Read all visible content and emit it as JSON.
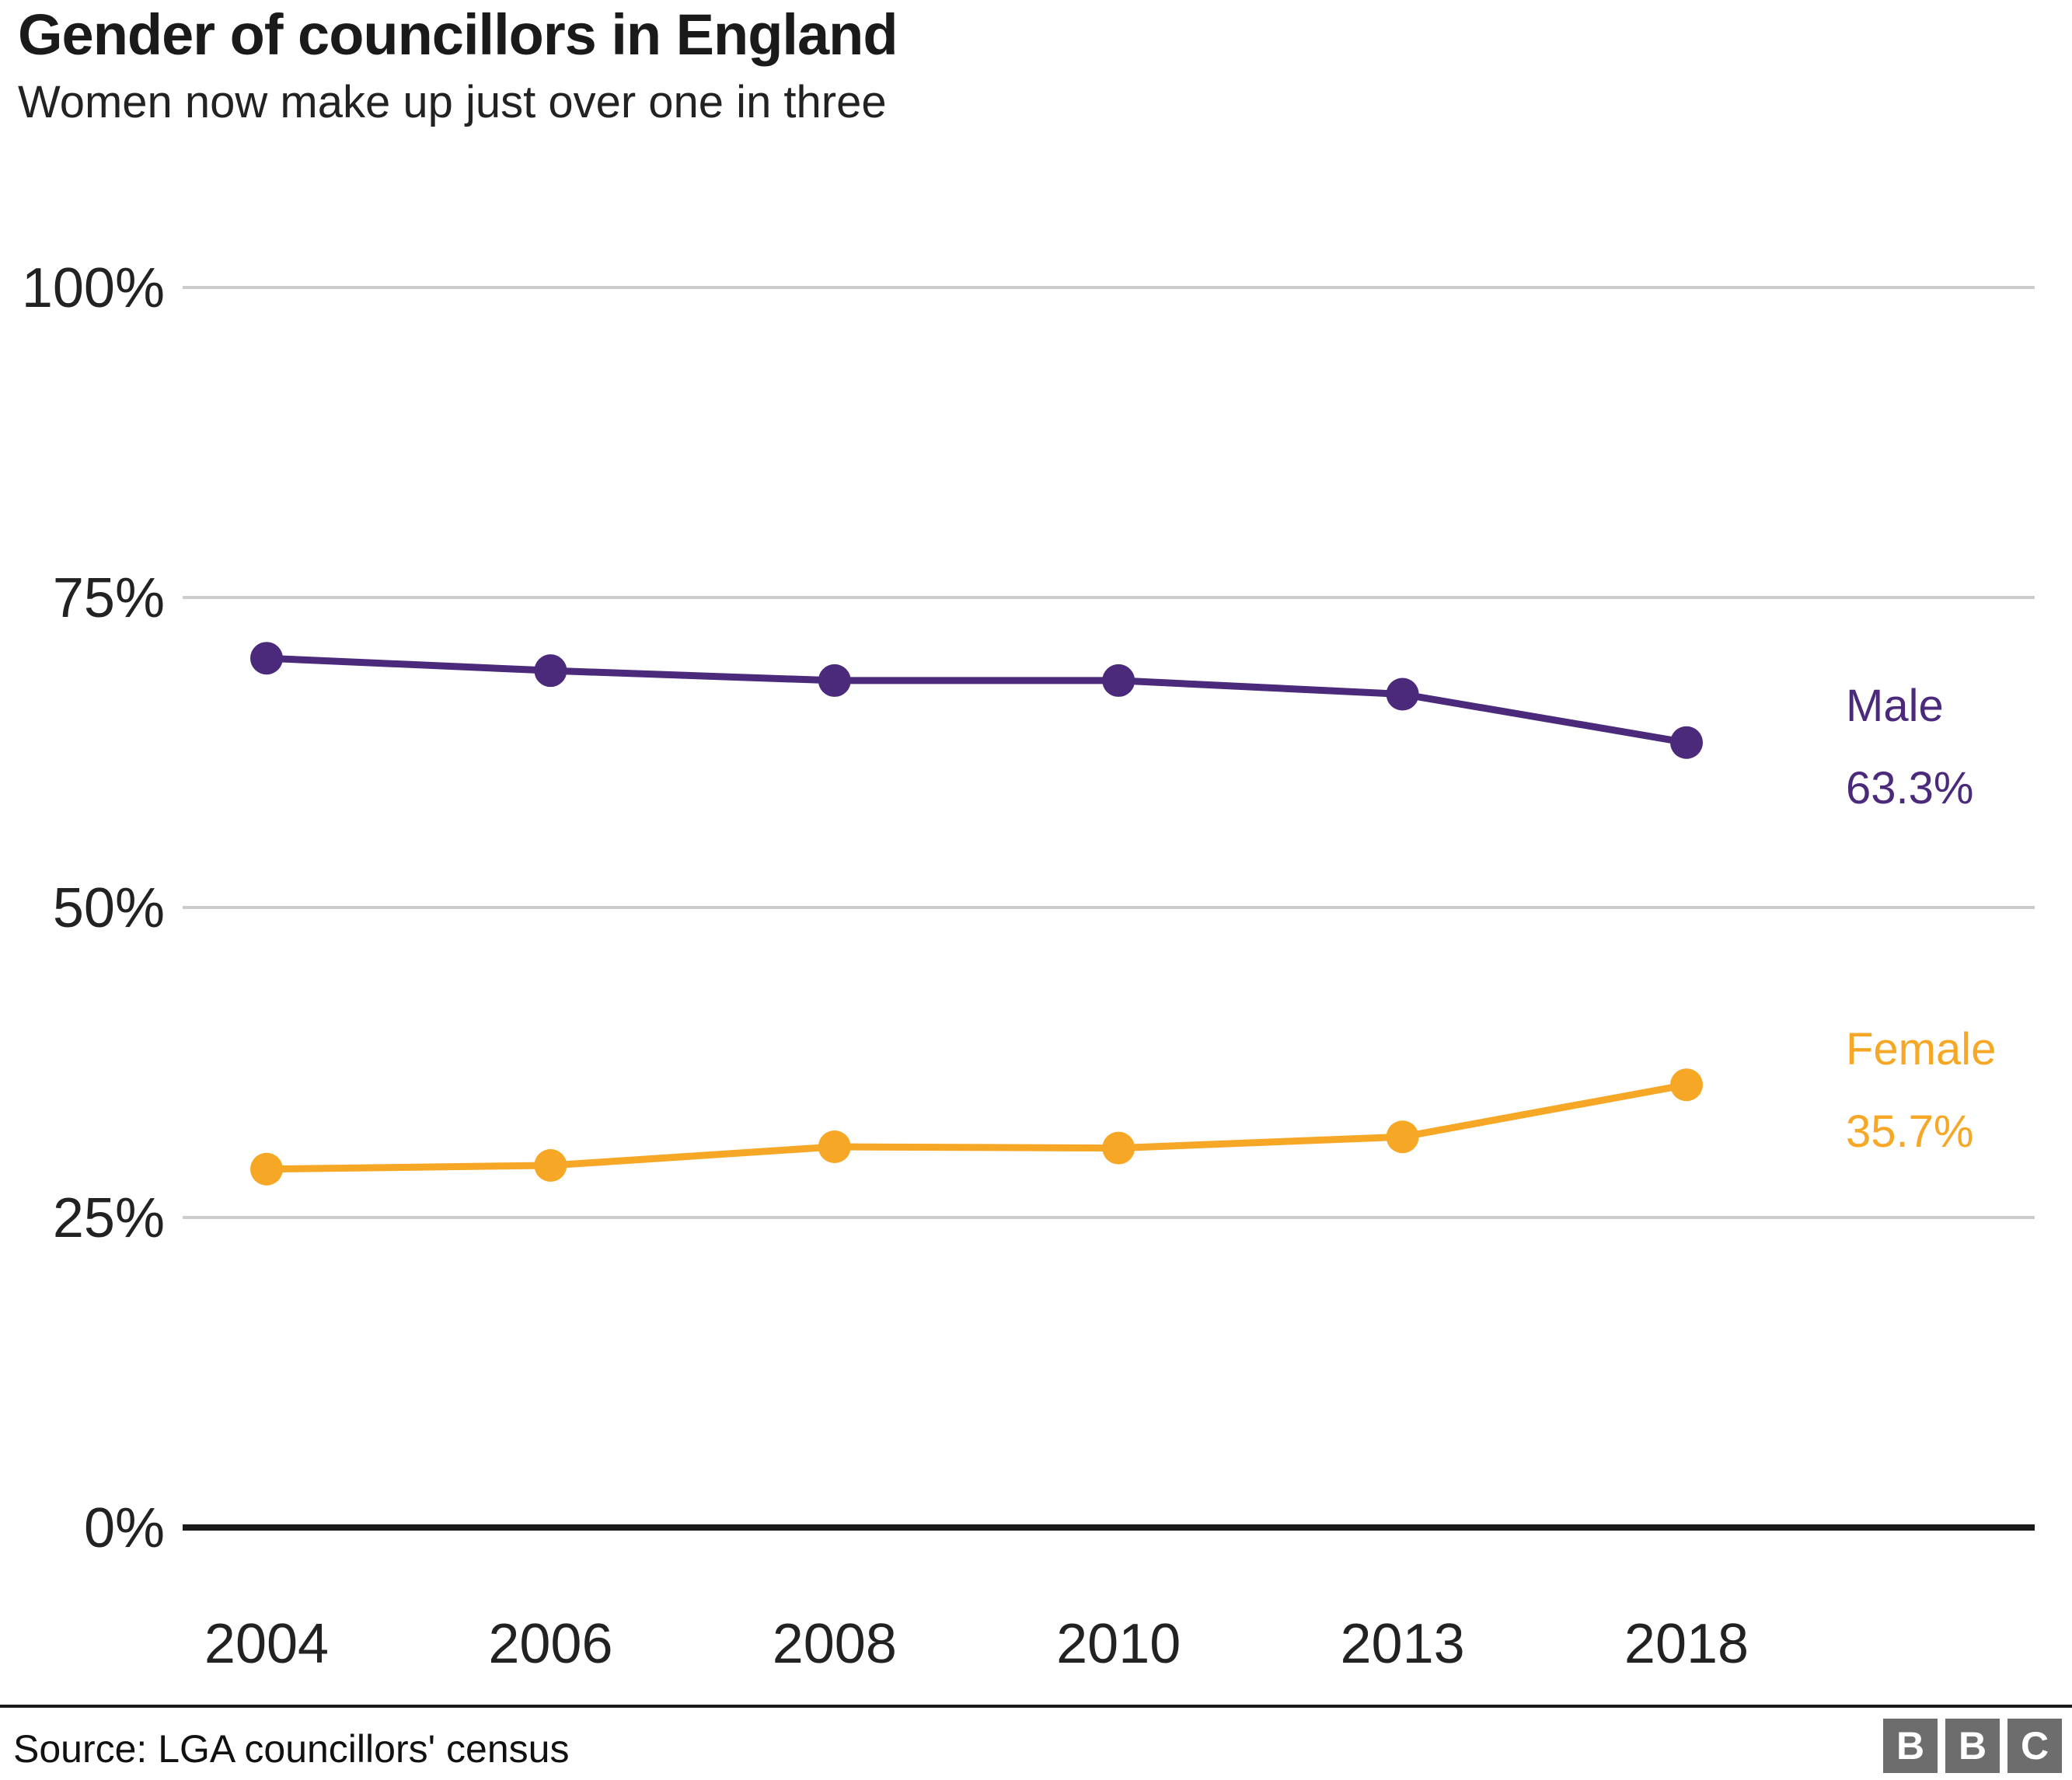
{
  "chart_data": {
    "type": "line",
    "title": "Gender of councillors in England",
    "subtitle": "Women now make up just over one in three",
    "categories": [
      "2004",
      "2006",
      "2008",
      "2010",
      "2013",
      "2018"
    ],
    "series": [
      {
        "name": "Male",
        "color": "#4b2a7c",
        "values": [
          70.1,
          69.1,
          68.3,
          68.3,
          67.2,
          63.3
        ],
        "end_label_value": "63.3%"
      },
      {
        "name": "Female",
        "color": "#f6a725",
        "values": [
          28.9,
          29.2,
          30.7,
          30.6,
          31.5,
          35.7
        ],
        "end_label_value": "35.7%"
      }
    ],
    "y_ticks": [
      {
        "label": "100%",
        "value": 100
      },
      {
        "label": "75%",
        "value": 75
      },
      {
        "label": "50%",
        "value": 50
      },
      {
        "label": "25%",
        "value": 25
      },
      {
        "label": "0%",
        "value": 0
      }
    ],
    "ylim": [
      0,
      100
    ],
    "grid": "horizontal-gridlines",
    "legend_position": "right-end-labels"
  },
  "colors": {
    "male": "#4b2a7c",
    "female": "#f6a725",
    "grid": "#cccccc",
    "axis": "#1a1a1a",
    "tick_text": "#222222",
    "bbc_grey": "#6d6d6d"
  },
  "footer": {
    "source": "Source: LGA councillors' census",
    "bbc_letters": [
      "B",
      "B",
      "C"
    ]
  }
}
